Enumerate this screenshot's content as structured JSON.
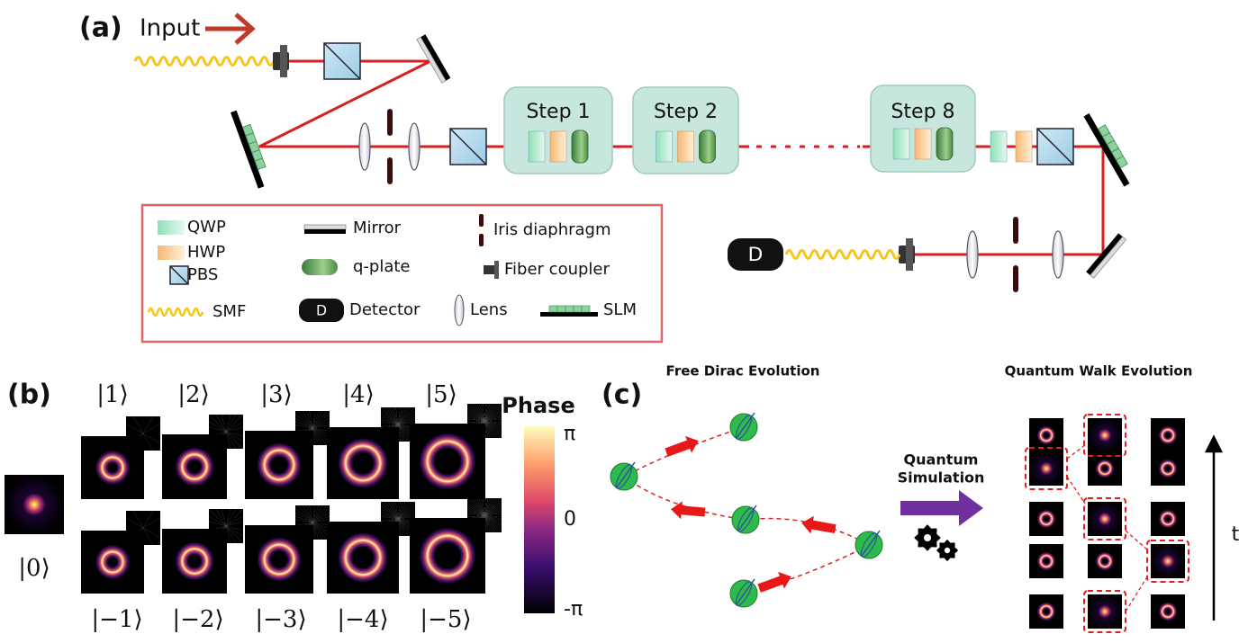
{
  "panel_a": {
    "label": "(a)",
    "input": "Input",
    "steps": [
      "Step 1",
      "Step 2",
      "Step 8"
    ],
    "detector": "D",
    "legend": [
      "QWP",
      "HWP",
      "PBS",
      "SMF",
      "Mirror",
      "q-plate",
      "Detector",
      "Lens",
      "Iris diaphragm",
      "Fiber coupler",
      "SLM"
    ],
    "legend_detector_icon": "D"
  },
  "panel_b": {
    "label": "(b)",
    "kets_top": [
      "|1⟩",
      "|2⟩",
      "|3⟩",
      "|4⟩",
      "|5⟩"
    ],
    "ket_zero": "|0⟩",
    "kets_bottom": [
      "|−1⟩",
      "|−2⟩",
      "|−3⟩",
      "|−4⟩",
      "|−5⟩"
    ],
    "colorbar": {
      "title": "Phase",
      "ticks": [
        "π",
        "0",
        "-π"
      ]
    }
  },
  "panel_c": {
    "label": "(c)",
    "left_title": "Free Dirac Evolution",
    "right_title": "Quantum Walk Evolution",
    "arrow_label": [
      "Quantum",
      "Simulation"
    ],
    "time_axis": "t"
  }
}
